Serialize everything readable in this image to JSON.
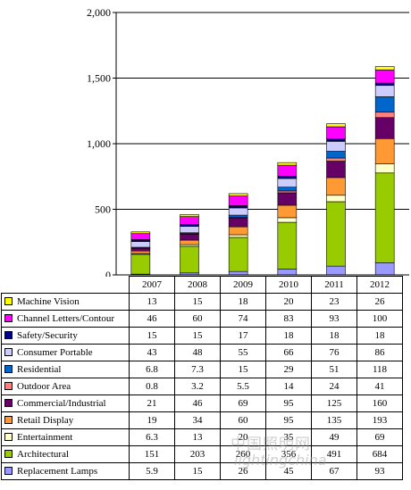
{
  "chart_data": {
    "type": "bar",
    "stacked": true,
    "categories": [
      "2007",
      "2008",
      "2009",
      "2010",
      "2011",
      "2012"
    ],
    "ylim": [
      0,
      2000
    ],
    "yticks": [
      "0",
      "500",
      "1,000",
      "1,500",
      "2,000"
    ],
    "grid": true,
    "series": [
      {
        "name": "Replacement Lamps",
        "color": "#9999ff",
        "values": [
          5.9,
          15,
          26,
          45,
          67,
          93
        ]
      },
      {
        "name": "Architectural",
        "color": "#99cc00",
        "values": [
          151,
          203,
          260,
          356,
          491,
          684
        ]
      },
      {
        "name": "Entertainment",
        "color": "#ffffcc",
        "values": [
          6.3,
          13,
          20,
          35,
          49,
          69
        ]
      },
      {
        "name": "Retail Display",
        "color": "#ff9933",
        "values": [
          19,
          34,
          60,
          95,
          135,
          193
        ]
      },
      {
        "name": "Commercial/Industrial",
        "color": "#660066",
        "values": [
          21,
          46,
          69,
          95,
          125,
          160
        ]
      },
      {
        "name": "Outdoor Area",
        "color": "#ff8080",
        "values": [
          0.8,
          3.2,
          5.5,
          14,
          24,
          41
        ]
      },
      {
        "name": "Residential",
        "color": "#0066cc",
        "values": [
          6.8,
          7.3,
          15,
          29,
          51,
          118
        ]
      },
      {
        "name": "Consumer Portable",
        "color": "#ccccff",
        "values": [
          43,
          48,
          55,
          66,
          76,
          86
        ]
      },
      {
        "name": "Safety/Security",
        "color": "#000080",
        "values": [
          15,
          15,
          17,
          18,
          18,
          18
        ]
      },
      {
        "name": "Channel Letters/Contour",
        "color": "#ff00ff",
        "values": [
          46,
          60,
          74,
          83,
          93,
          100
        ]
      },
      {
        "name": "Machine Vision",
        "color": "#ffff00",
        "values": [
          13,
          15,
          18,
          20,
          23,
          26
        ]
      }
    ],
    "table_rows": [
      {
        "name": "Machine Vision",
        "color": "#ffff00",
        "cells": [
          "13",
          "15",
          "18",
          "20",
          "23",
          "26"
        ]
      },
      {
        "name": "Channel Letters/Contour",
        "color": "#ff00ff",
        "cells": [
          "46",
          "60",
          "74",
          "83",
          "93",
          "100"
        ]
      },
      {
        "name": "Safety/Security",
        "color": "#000080",
        "cells": [
          "15",
          "15",
          "17",
          "18",
          "18",
          "18"
        ]
      },
      {
        "name": "Consumer Portable",
        "color": "#ccccff",
        "cells": [
          "43",
          "48",
          "55",
          "66",
          "76",
          "86"
        ]
      },
      {
        "name": "Residential",
        "color": "#0066cc",
        "cells": [
          "6.8",
          "7.3",
          "15",
          "29",
          "51",
          "118"
        ]
      },
      {
        "name": "Outdoor Area",
        "color": "#ff8080",
        "cells": [
          "0.8",
          "3.2",
          "5.5",
          "14",
          "24",
          "41"
        ]
      },
      {
        "name": "Commercial/Industrial",
        "color": "#660066",
        "cells": [
          "21",
          "46",
          "69",
          "95",
          "125",
          "160"
        ]
      },
      {
        "name": "Retail Display",
        "color": "#ff9933",
        "cells": [
          "19",
          "34",
          "60",
          "95",
          "135",
          "193"
        ]
      },
      {
        "name": "Entertainment",
        "color": "#ffffcc",
        "cells": [
          "6.3",
          "13",
          "20",
          "35",
          "49",
          "69"
        ]
      },
      {
        "name": "Architectural",
        "color": "#99cc00",
        "cells": [
          "151",
          "203",
          "260",
          "356",
          "491",
          "684"
        ]
      },
      {
        "name": "Replacement Lamps",
        "color": "#9999ff",
        "cells": [
          "5.9",
          "15",
          "26",
          "45",
          "67",
          "93"
        ]
      }
    ]
  },
  "watermark": {
    "line1": "中国照明网",
    "line2": "lightingchina"
  }
}
